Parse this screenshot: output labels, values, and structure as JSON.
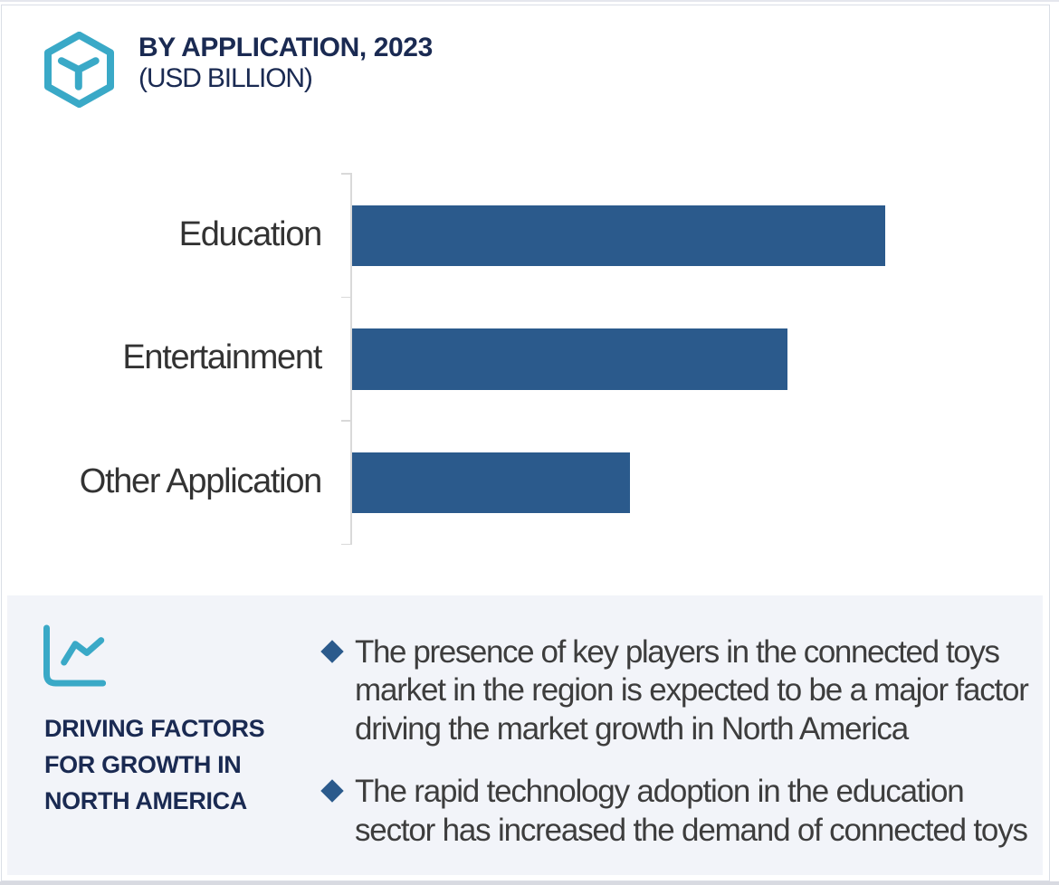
{
  "header": {
    "icon": "cube-hexagon-icon",
    "title_lines": [
      "BY APPLICATION, 2023",
      "(USD BILLION)"
    ]
  },
  "chart_data": {
    "type": "bar",
    "orientation": "horizontal",
    "title": "BY APPLICATION, 2023",
    "subtitle": "(USD BILLION)",
    "unit": "USD Billion",
    "categories": [
      "Education",
      "Entertainment",
      "Other Application"
    ],
    "values_relative": [
      100,
      81.7,
      52.1
    ],
    "value_axis": "unlabeled (no ticks or gridlines); values are relative bar lengths, Education = 100",
    "bar_color": "#2b5a8c",
    "legend": "none",
    "grid": false
  },
  "panel": {
    "icon": "line-chart-icon",
    "heading_lines": [
      "DRIVING FACTORS",
      "FOR GROWTH IN",
      "NORTH AMERICA"
    ],
    "bullets": [
      {
        "lines": [
          "The presence of key players in the connected toys",
          "market in the region is expected to be a major factor",
          "driving the market growth in North America"
        ]
      },
      {
        "lines": [
          "The rapid technology adoption in the education",
          "sector has increased the demand of connected toys"
        ]
      }
    ]
  },
  "colors": {
    "navy_heading": "#1a2a52",
    "bar_blue": "#2b5a8c",
    "teal_icon": "#3aa9c7",
    "panel_background": "#f2f4f9",
    "axis_gray": "#d9d9d9",
    "body_text": "#3d3d3d",
    "card_border": "#dadee6"
  }
}
